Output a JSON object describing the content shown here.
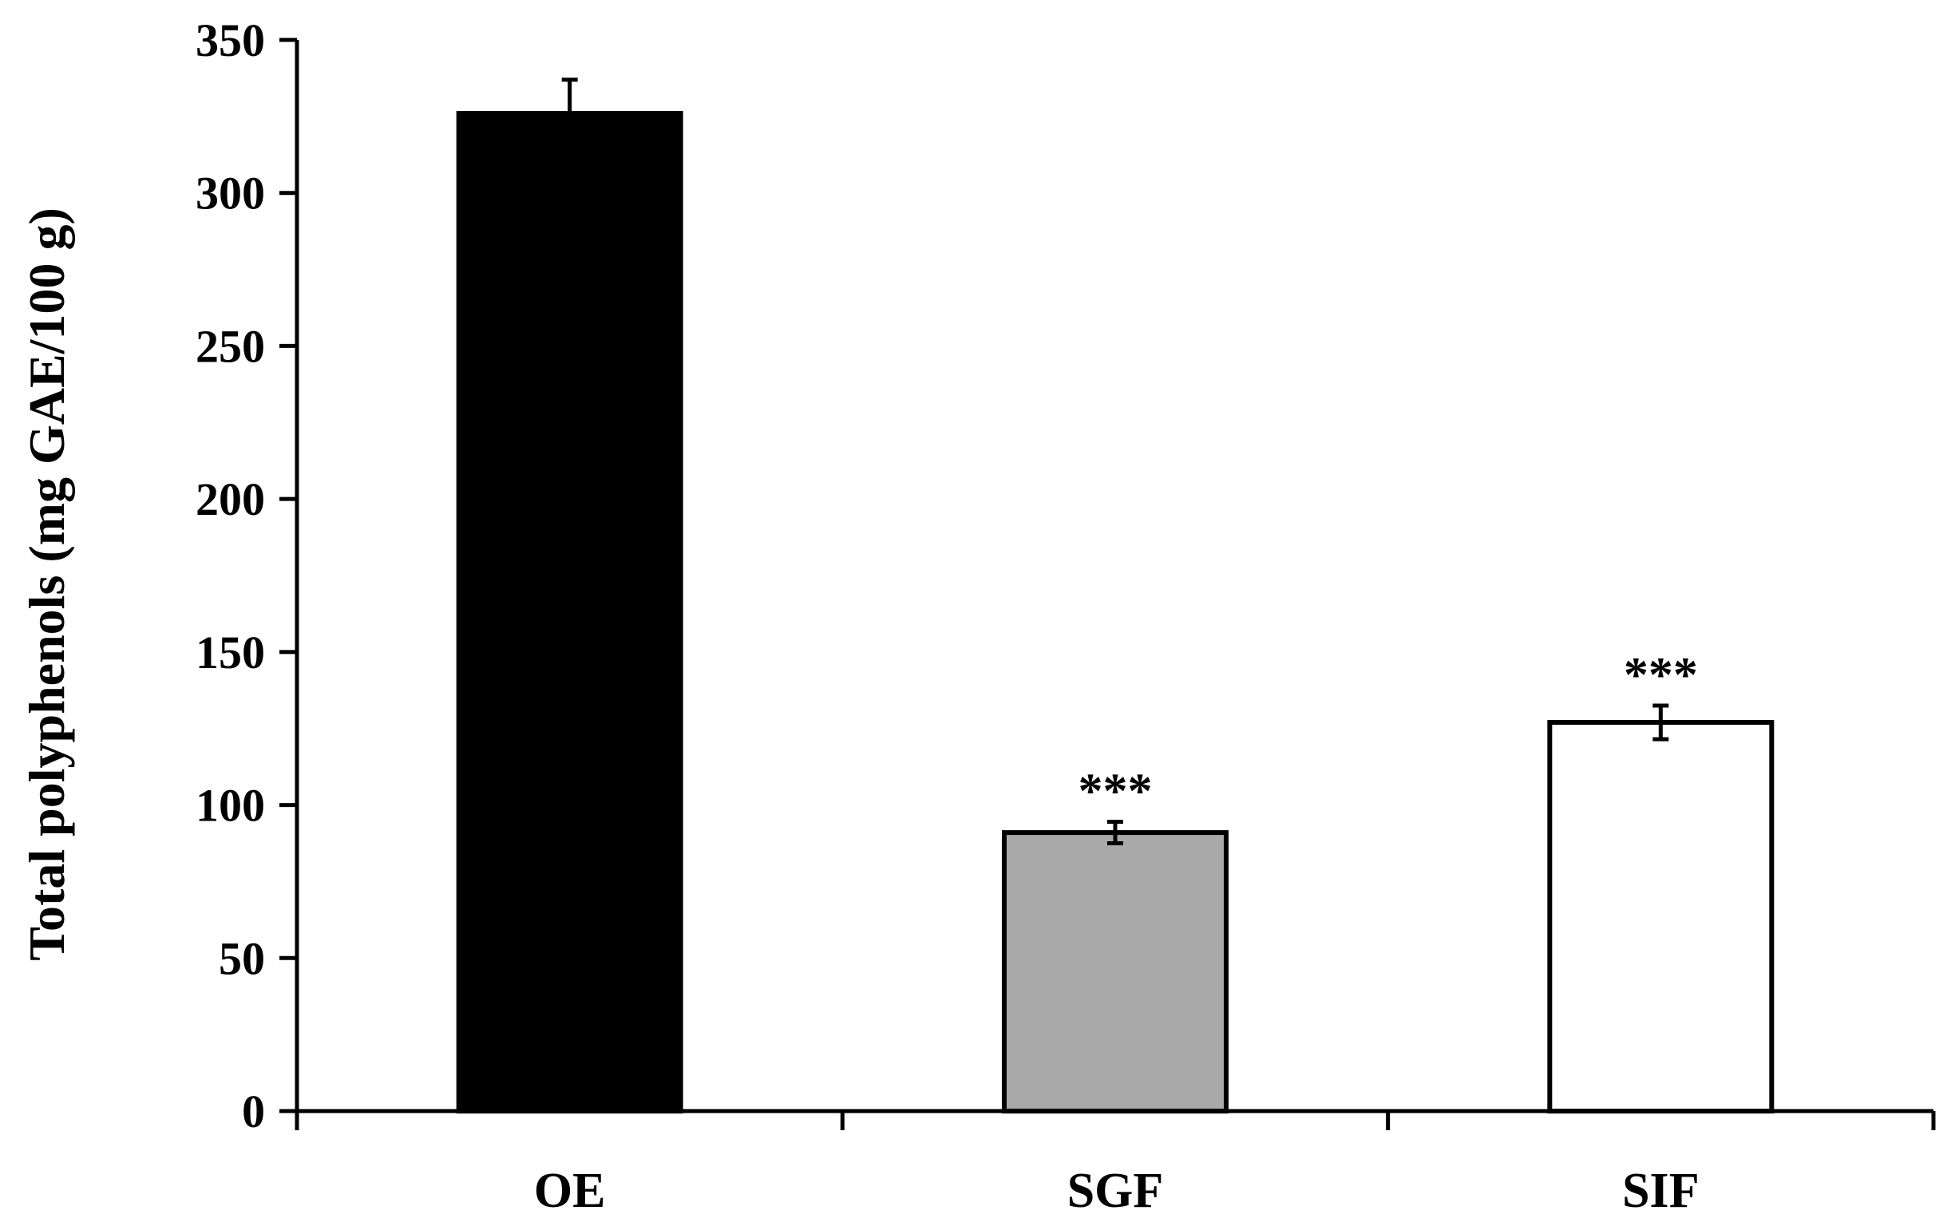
{
  "chart_data": {
    "type": "bar",
    "title": "",
    "xlabel": "",
    "ylabel": "Total polyphenols (mg GAE/100 g)",
    "ylim": [
      0,
      350
    ],
    "yticks": [
      0,
      50,
      100,
      150,
      200,
      250,
      300,
      350
    ],
    "ytick_labels": [
      "0",
      "50",
      "100",
      "150",
      "200",
      "250",
      "300",
      "350"
    ],
    "categories": [
      "OE",
      "SGF",
      "SIF"
    ],
    "values": [
      326,
      91,
      127
    ],
    "errors": [
      11,
      3.5,
      5.5
    ],
    "annotations": [
      "",
      "***",
      "***"
    ],
    "colors": [
      "#000000",
      "#a9a9a9",
      "#ffffff"
    ],
    "grid": false,
    "legend": "none"
  }
}
